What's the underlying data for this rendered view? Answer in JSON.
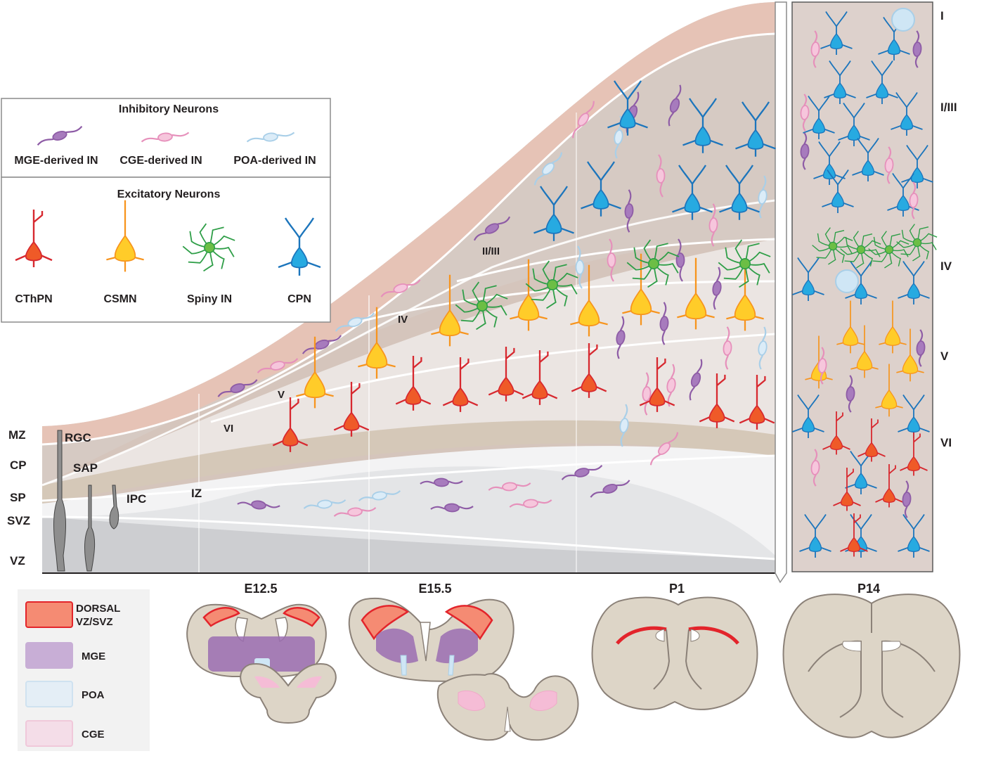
{
  "legend": {
    "inhibitory_title": "Inhibitory Neurons",
    "excitatory_title": "Excitatory Neurons",
    "inhibitory": [
      {
        "label": "MGE-derived IN",
        "color": "#8e5ca6"
      },
      {
        "label": "CGE-derived IN",
        "color": "#e690bb"
      },
      {
        "label": "POA-derived IN",
        "color": "#a9cfe8"
      }
    ],
    "excitatory": [
      {
        "label": "CThPN",
        "color": "#d7282f",
        "soma": "#ef5a28",
        "icon": "pyramidal-red"
      },
      {
        "label": "CSMN",
        "color": "#f7941d",
        "soma": "#ffcc29",
        "icon": "pyramidal-orange"
      },
      {
        "label": "Spiny IN",
        "color": "#2e9e47",
        "soma": "#6cbe45",
        "icon": "spiny-stellate"
      },
      {
        "label": "CPN",
        "color": "#1c75bc",
        "soma": "#27aae1",
        "icon": "pyramidal-blue"
      }
    ]
  },
  "zones": [
    "MZ",
    "CP",
    "SP",
    "SVZ",
    "VZ"
  ],
  "progenitors": [
    "RGC",
    "SAP",
    "IPC"
  ],
  "iz_label": "IZ",
  "cortex_layers": [
    "II/III",
    "IV",
    "V",
    "VI"
  ],
  "timepoints": [
    "E12.5",
    "E15.5",
    "P1",
    "P14"
  ],
  "p14_layers": [
    "I",
    "I/III",
    "IV",
    "V",
    "VI"
  ],
  "region_legend": [
    {
      "label": "DORSAL VZ/SVZ",
      "line1": "DORSAL",
      "line2": "VZ/SVZ",
      "fill": "#f58b73",
      "stroke": "#e3242b"
    },
    {
      "label": "MGE",
      "fill": "#c8aed6",
      "stroke": "#c8aed6"
    },
    {
      "label": "POA",
      "fill": "#e4eef6",
      "stroke": "#cfe2f0"
    },
    {
      "label": "CGE",
      "fill": "#f4dde8",
      "stroke": "#f0c8da"
    }
  ],
  "colors": {
    "tissue": "#ddd5c7",
    "tissue_outline": "#8b8178",
    "dorsal": "#e3242b",
    "mge": "#9b6db1",
    "poa": "#cfe6f5",
    "cge": "#f5bcd6",
    "band_mz": "#e8cfc6",
    "band_cp": "#e3d8d3",
    "band_sp": "#d8cbbb",
    "band_vz": "#d7d8da"
  }
}
